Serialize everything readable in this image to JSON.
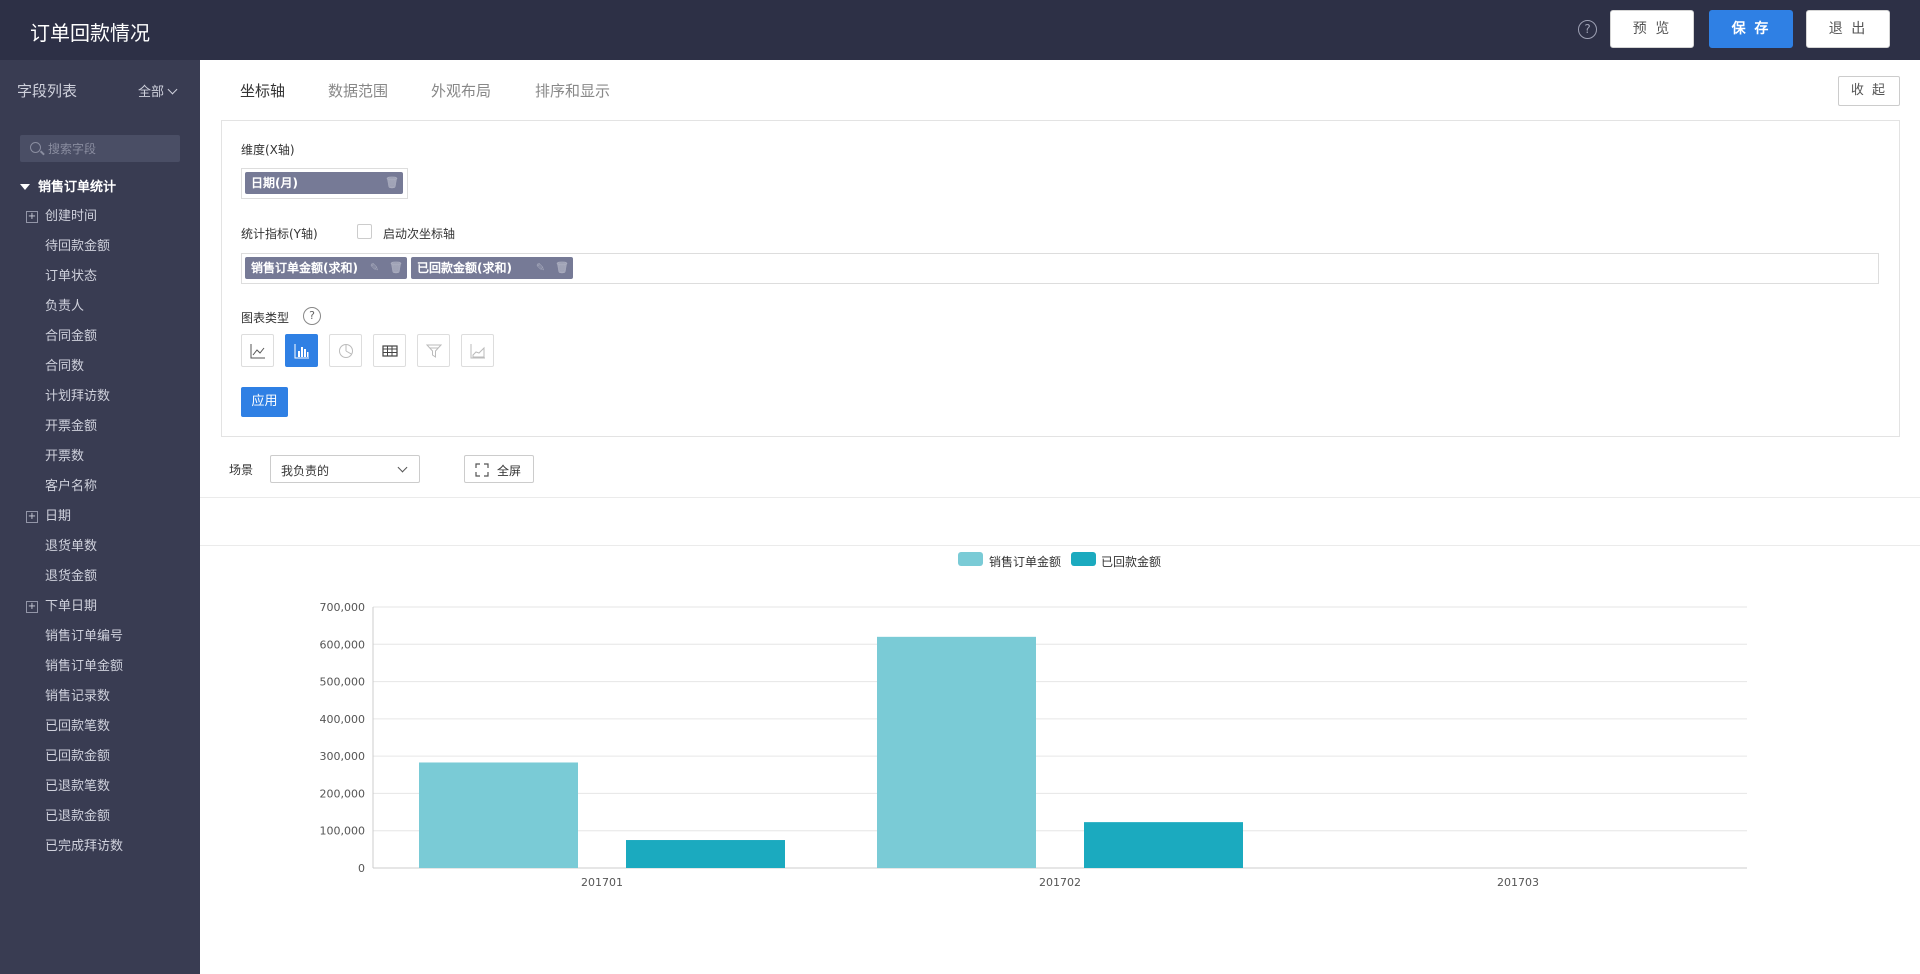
{
  "header": {
    "title": "订单回款情况",
    "help_icon": "?",
    "preview_label": "预 览",
    "save_label": "保 存",
    "exit_label": "退 出"
  },
  "sidebar": {
    "title": "字段列表",
    "filter_label": "全部",
    "search_placeholder": "搜索字段",
    "group_label": "销售订单统计",
    "items": [
      {
        "label": "创建时间",
        "expandable": true
      },
      {
        "label": "待回款金额",
        "expandable": false
      },
      {
        "label": "订单状态",
        "expandable": false
      },
      {
        "label": "负责人",
        "expandable": false
      },
      {
        "label": "合同金额",
        "expandable": false
      },
      {
        "label": "合同数",
        "expandable": false
      },
      {
        "label": "计划拜访数",
        "expandable": false
      },
      {
        "label": "开票金额",
        "expandable": false
      },
      {
        "label": "开票数",
        "expandable": false
      },
      {
        "label": "客户名称",
        "expandable": false
      },
      {
        "label": "日期",
        "expandable": true
      },
      {
        "label": "退货单数",
        "expandable": false
      },
      {
        "label": "退货金额",
        "expandable": false
      },
      {
        "label": "下单日期",
        "expandable": true
      },
      {
        "label": "销售订单编号",
        "expandable": false
      },
      {
        "label": "销售订单金额",
        "expandable": false
      },
      {
        "label": "销售记录数",
        "expandable": false
      },
      {
        "label": "已回款笔数",
        "expandable": false
      },
      {
        "label": "已回款金额",
        "expandable": false
      },
      {
        "label": "已退款笔数",
        "expandable": false
      },
      {
        "label": "已退款金额",
        "expandable": false
      },
      {
        "label": "已完成拜访数",
        "expandable": false
      }
    ]
  },
  "tabs": [
    "坐标轴",
    "数据范围",
    "外观布局",
    "排序和显示"
  ],
  "collapse_label": "收 起",
  "config": {
    "dimension_label": "维度(X轴)",
    "dimension_chip": "日期(月)",
    "metric_label": "统计指标(Y轴)",
    "secondary_axis_label": "启动次坐标轴",
    "metric_chips": [
      "销售订单金额(求和)",
      "已回款金额(求和)"
    ],
    "chart_type_label": "图表类型",
    "chart_types": [
      "line-chart-icon",
      "bar-chart-icon",
      "pie-chart-icon",
      "table-icon",
      "funnel-icon",
      "area-chart-icon"
    ],
    "active_chart_type": "bar-chart-icon",
    "apply_label": "应用"
  },
  "filter": {
    "scene_label": "场景",
    "scene_value": "我负责的",
    "fullscreen_label": "全屏"
  },
  "colors": {
    "accent": "#2f80e4",
    "header_bg": "#2d3046",
    "sidebar_bg": "#393c52",
    "series1": "#7acbd6",
    "series2": "#1baabf"
  },
  "chart_data": {
    "type": "bar",
    "categories": [
      "201701",
      "201702",
      "201703"
    ],
    "series": [
      {
        "name": "销售订单金额",
        "values": [
          283000,
          620000,
          0
        ]
      },
      {
        "name": "已回款金额",
        "values": [
          75000,
          123000,
          0
        ]
      }
    ],
    "ylim": [
      0,
      700000
    ],
    "yticks": [
      0,
      100000,
      200000,
      300000,
      400000,
      500000,
      600000,
      700000
    ],
    "ytick_labels": [
      "0",
      "100,000",
      "200,000",
      "300,000",
      "400,000",
      "500,000",
      "600,000",
      "700,000"
    ],
    "legend": "top-center",
    "grid": true
  }
}
